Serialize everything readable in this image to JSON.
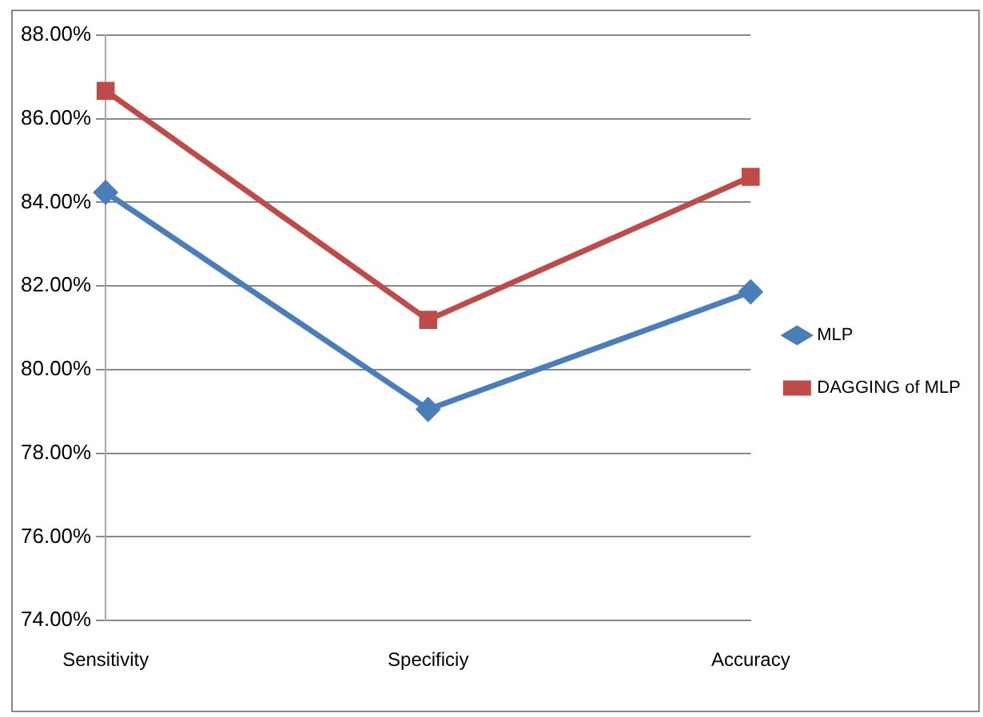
{
  "chart_data": {
    "type": "line",
    "categories": [
      "Sensitivity",
      "Specificiy",
      "Accuracy"
    ],
    "series": [
      {
        "name": "MLP",
        "color": "#4a7ebb",
        "marker": "diamond",
        "values": [
          84.24,
          79.05,
          81.86
        ]
      },
      {
        "name": "DAGGING of MLP",
        "color": "#be4b48",
        "marker": "square",
        "values": [
          86.67,
          81.19,
          84.61
        ]
      }
    ],
    "ylim": [
      74,
      88
    ],
    "yticks": [
      {
        "value": 74,
        "label": "74.00%"
      },
      {
        "value": 76,
        "label": "76.00%"
      },
      {
        "value": 78,
        "label": "78.00%"
      },
      {
        "value": 80,
        "label": "80.00%"
      },
      {
        "value": 82,
        "label": "82.00%"
      },
      {
        "value": 84,
        "label": "84.00%"
      },
      {
        "value": 86,
        "label": "86.00%"
      },
      {
        "value": 88,
        "label": "88.00%"
      }
    ],
    "grid": "y",
    "legend": "right",
    "line_style": "solid"
  }
}
